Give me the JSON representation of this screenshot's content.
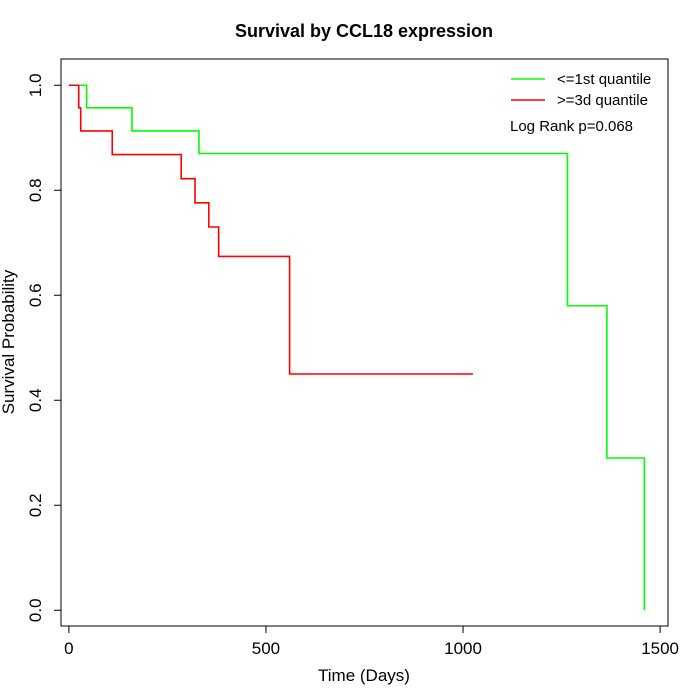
{
  "chart_data": {
    "type": "line",
    "title": "Survival by CCL18 expression",
    "xlabel": "Time (Days)",
    "ylabel": "Survival Probability",
    "xlim": [
      -20,
      1520
    ],
    "ylim": [
      -0.03,
      1.05
    ],
    "xticks": [
      0,
      500,
      1000,
      1500
    ],
    "yticks": [
      0.0,
      0.2,
      0.4,
      0.6,
      0.8,
      1.0
    ],
    "xtick_labels": [
      "0",
      "500",
      "1000",
      "1500"
    ],
    "ytick_labels": [
      "0.0",
      "0.2",
      "0.4",
      "0.6",
      "0.8",
      "1.0"
    ],
    "legend_position": "top-right",
    "annotation": "Log Rank p=0.068",
    "series": [
      {
        "name": "<=1st quantile",
        "color": "#00ff00",
        "x": [
          0,
          45,
          160,
          330,
          1265,
          1365,
          1460,
          1460
        ],
        "y": [
          1.0,
          0.957,
          0.913,
          0.87,
          0.58,
          0.29,
          0.29,
          0.0
        ]
      },
      {
        "name": ">=3d quantile",
        "color": "#ff0000",
        "x": [
          0,
          25,
          30,
          110,
          285,
          320,
          355,
          380,
          560,
          1025
        ],
        "y": [
          1.0,
          0.957,
          0.913,
          0.868,
          0.822,
          0.776,
          0.73,
          0.674,
          0.45,
          0.45
        ]
      }
    ]
  }
}
